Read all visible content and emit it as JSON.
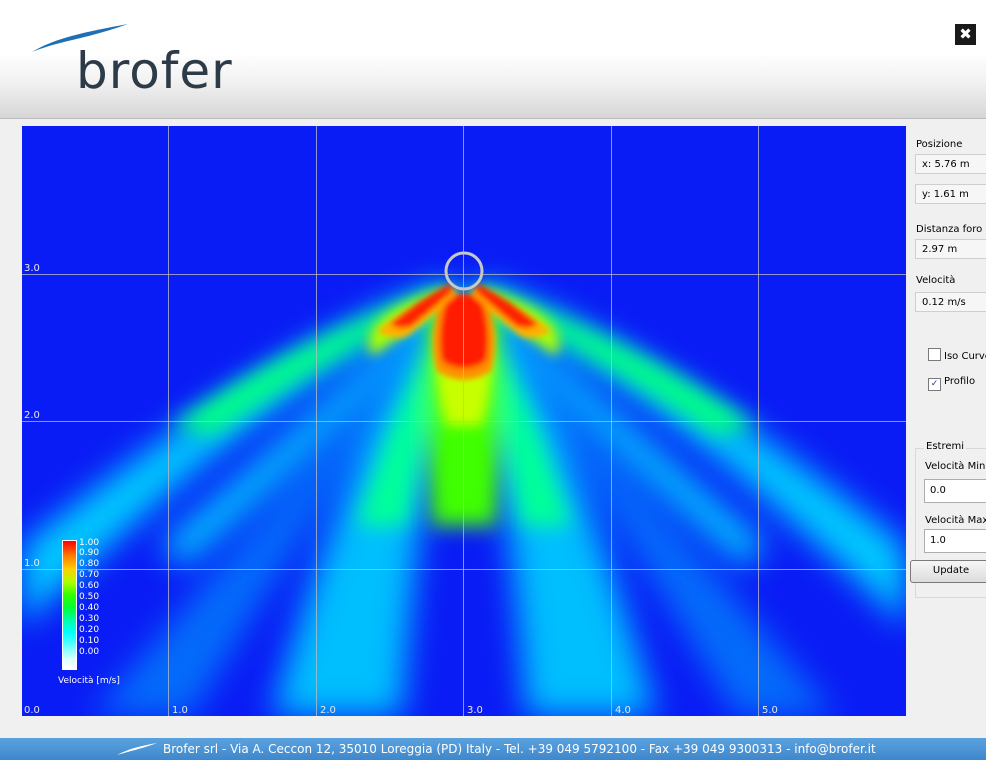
{
  "header": {
    "brand": "brofer",
    "close_label": "✖"
  },
  "plot": {
    "x_ticks": [
      "0.0",
      "1.0",
      "2.0",
      "3.0",
      "4.0",
      "5.0"
    ],
    "y_ticks": [
      "1.0",
      "2.0",
      "3.0"
    ],
    "legend": {
      "title": "Velocità [m/s]",
      "labels": [
        "1.00",
        "0.90",
        "0.80",
        "0.70",
        "0.60",
        "0.50",
        "0.40",
        "0.30",
        "0.20",
        "0.10",
        "0.00"
      ]
    },
    "colors": {
      "background": "#0a1cf5",
      "high": "#ff0000",
      "mid": "#33ff00",
      "low": "#00ffff"
    }
  },
  "side": {
    "position_label": "Posizione",
    "x_value": "x: 5.76 m",
    "y_value": "y: 1.61 m",
    "distance_label": "Distanza foro",
    "distance_value": "2.97 m",
    "velocity_label": "Velocità",
    "velocity_value": "0.12 m/s",
    "iso_curve_label": "Iso Curve",
    "iso_curve_checked": false,
    "profile_label": "Profilo",
    "profile_checked": true,
    "extremes_title": "Estremi",
    "vmin_label": "Velocità Min",
    "vmin_value": "0.0",
    "vmax_label": "Velocità Max",
    "vmax_value": "1.0",
    "update_label": "Update"
  },
  "footer": {
    "text": "Brofer srl - Via A. Ceccon 12, 35010 Loreggia (PD) Italy - Tel. +39 049 5792100 - Fax +39 049 9300313 - info@brofer.it"
  }
}
